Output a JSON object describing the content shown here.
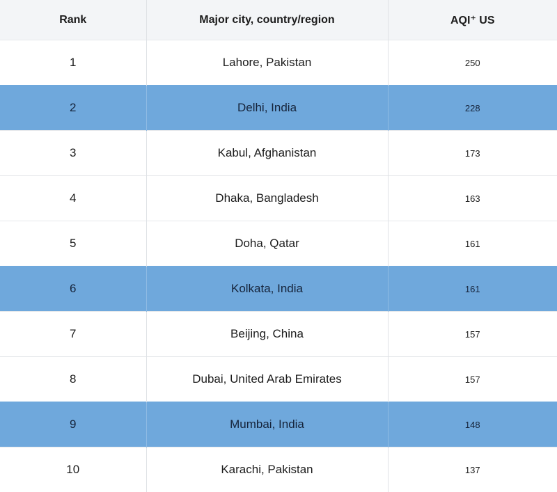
{
  "header": {
    "rank": "Rank",
    "city": "Major city, country/region",
    "aqi": "AQI⁺ US"
  },
  "highlight_color": "#6fa8dc",
  "rows": [
    {
      "rank": "1",
      "city": "Lahore, Pakistan",
      "aqi": "250",
      "highlighted": false
    },
    {
      "rank": "2",
      "city": "Delhi, India",
      "aqi": "228",
      "highlighted": true
    },
    {
      "rank": "3",
      "city": "Kabul, Afghanistan",
      "aqi": "173",
      "highlighted": false
    },
    {
      "rank": "4",
      "city": "Dhaka, Bangladesh",
      "aqi": "163",
      "highlighted": false
    },
    {
      "rank": "5",
      "city": "Doha, Qatar",
      "aqi": "161",
      "highlighted": false
    },
    {
      "rank": "6",
      "city": "Kolkata, India",
      "aqi": "161",
      "highlighted": true
    },
    {
      "rank": "7",
      "city": "Beijing, China",
      "aqi": "157",
      "highlighted": false
    },
    {
      "rank": "8",
      "city": "Dubai, United Arab Emirates",
      "aqi": "157",
      "highlighted": false
    },
    {
      "rank": "9",
      "city": "Mumbai, India",
      "aqi": "148",
      "highlighted": true
    },
    {
      "rank": "10",
      "city": "Karachi, Pakistan",
      "aqi": "137",
      "highlighted": false
    }
  ]
}
